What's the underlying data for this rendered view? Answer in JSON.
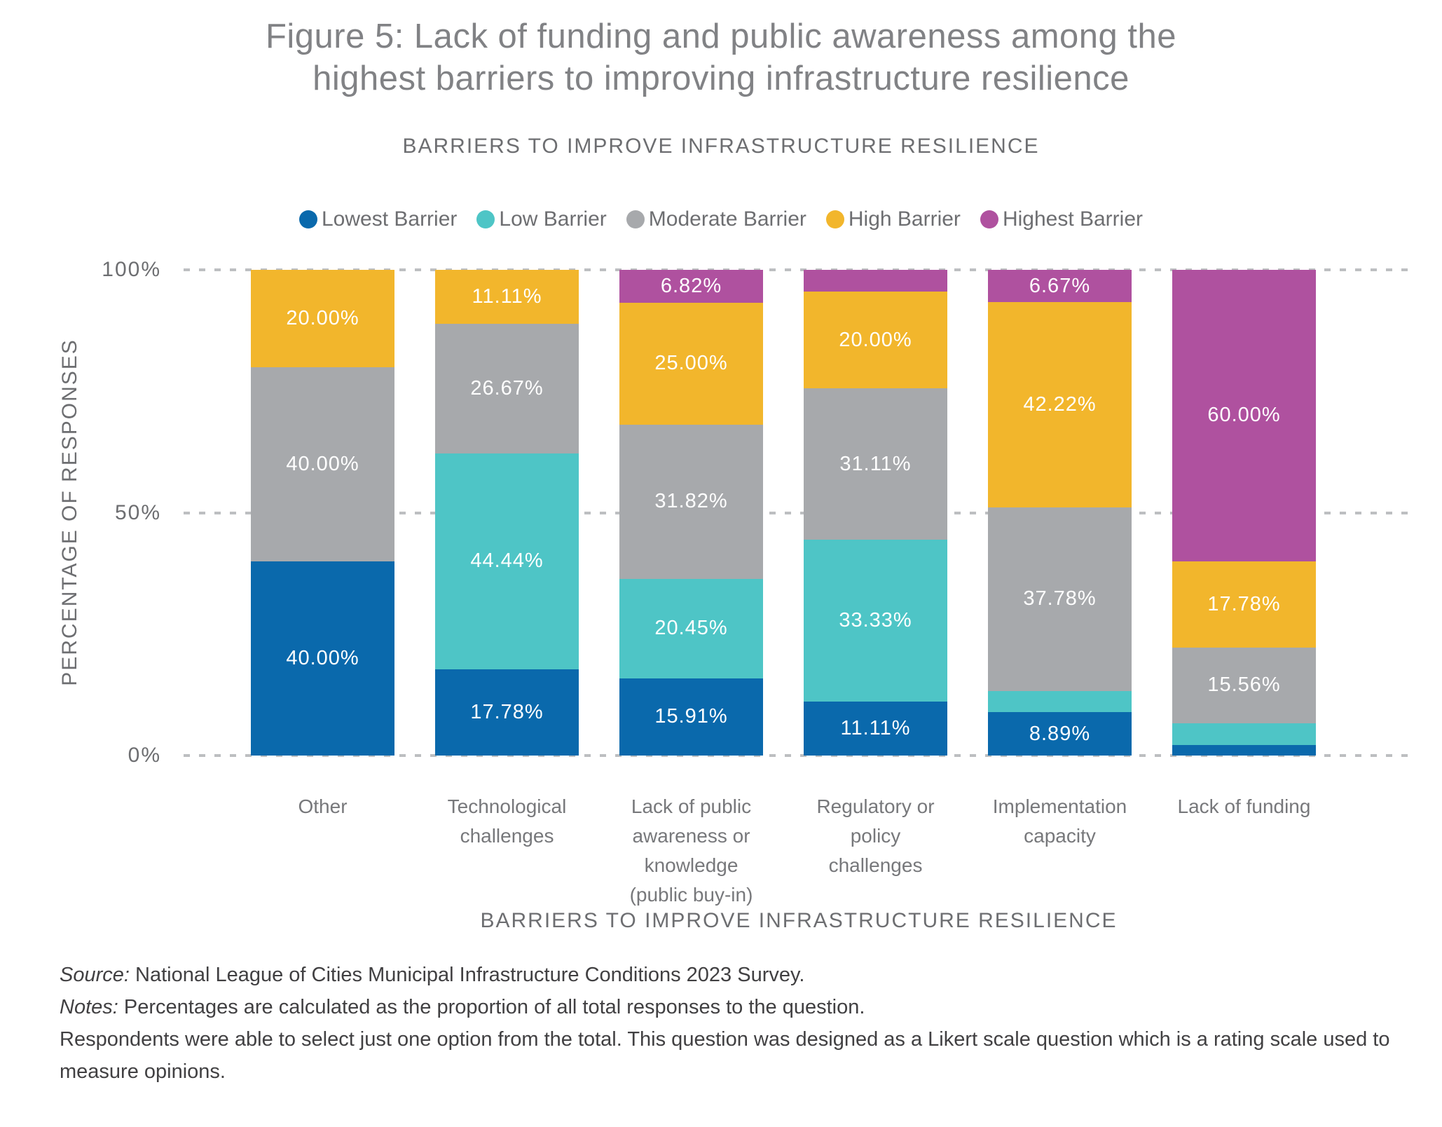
{
  "figure": {
    "title_lines": [
      "Figure 5: Lack of funding and public awareness among the",
      "highest barriers to improving infrastructure resilience"
    ],
    "chart_heading": "BARRIERS TO IMPROVE INFRASTRUCTURE RESILIENCE"
  },
  "chart_data": {
    "type": "bar",
    "variant": "stacked-100-percent",
    "title": "BARRIERS TO IMPROVE INFRASTRUCTURE RESILIENCE",
    "categories": [
      "Other",
      "Technological\nchallenges",
      "Lack of public\nawareness or\nknowledge\n(public buy-in)",
      "Regulatory or\npolicy\nchallenges",
      "Implementation\ncapacity",
      "Lack of funding"
    ],
    "series": [
      {
        "name": "Lowest Barrier",
        "color": "#0a69ac",
        "values": [
          40.0,
          17.78,
          15.91,
          11.11,
          8.89,
          2.22
        ],
        "labels": [
          "40.00%",
          "17.78%",
          "15.91%",
          "11.11%",
          "8.89%",
          ""
        ]
      },
      {
        "name": "Low Barrier",
        "color": "#4ec5c6",
        "values": [
          0,
          44.44,
          20.45,
          33.33,
          4.44,
          4.44
        ],
        "labels": [
          "",
          "44.44%",
          "20.45%",
          "33.33%",
          "",
          ""
        ]
      },
      {
        "name": "Moderate Barrier",
        "color": "#a7a9ac",
        "values": [
          40.0,
          26.67,
          31.82,
          31.11,
          37.78,
          15.56
        ],
        "labels": [
          "40.00%",
          "26.67%",
          "31.82%",
          "31.11%",
          "37.78%",
          "15.56%"
        ]
      },
      {
        "name": "High Barrier",
        "color": "#f2b62c",
        "values": [
          20.0,
          11.11,
          25.0,
          20.0,
          42.22,
          17.78
        ],
        "labels": [
          "20.00%",
          "11.11%",
          "25.00%",
          "20.00%",
          "42.22%",
          "17.78%"
        ]
      },
      {
        "name": "Highest Barrier",
        "color": "#af519f",
        "values": [
          0,
          0,
          6.82,
          4.44,
          6.67,
          60.0
        ],
        "labels": [
          "",
          "",
          "6.82%",
          "",
          "6.67%",
          "60.00%"
        ]
      }
    ],
    "ylabel": "PERCENTAGE OF RESPONSES",
    "xlabel": "BARRIERS TO IMPROVE INFRASTRUCTURE RESILIENCE",
    "yticks": [
      {
        "label": "0%",
        "value": 0
      },
      {
        "label": "50%",
        "value": 50
      },
      {
        "label": "100%",
        "value": 100
      }
    ],
    "ylim": [
      0,
      100
    ],
    "grid": "dashed-horizontal",
    "legend_position": "top"
  },
  "footer": {
    "lines": [
      {
        "prefix": "Source:",
        "text": " National League of Cities Municipal Infrastructure Conditions 2023 Survey."
      },
      {
        "prefix": "Notes:",
        "text": " Percentages are calculated as the proportion of all total responses to the question."
      },
      {
        "prefix": "",
        "text": "Respondents were able to select just one option from the total. This question  was designed as a Likert scale question which is a rating scale used to measure opinions."
      }
    ]
  }
}
